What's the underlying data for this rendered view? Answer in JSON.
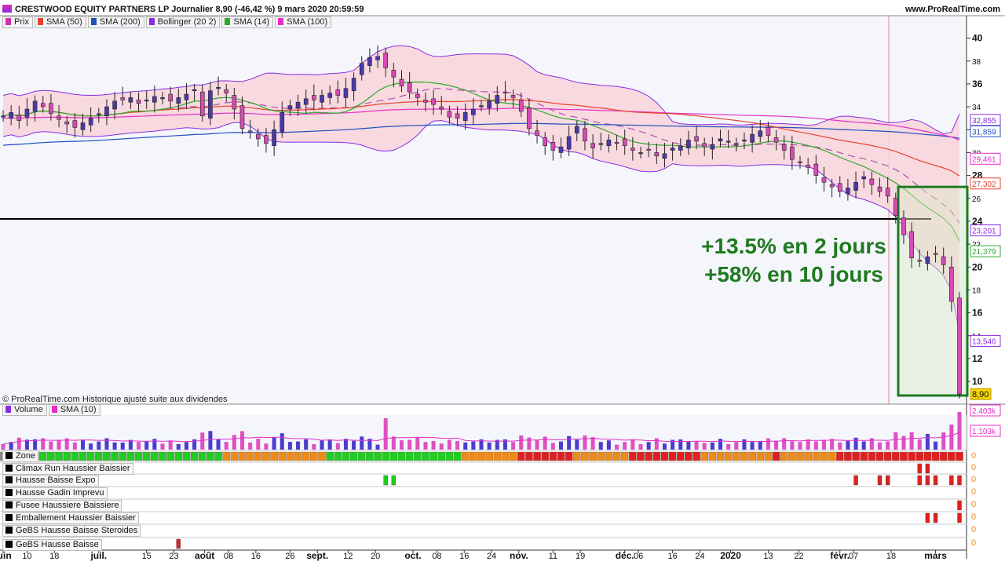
{
  "header": {
    "title": "CRESTWOOD EQUITY PARTNERS LP Journalier 8,90 (-46,42 %) 9 mars 2020 20:59:59",
    "site": "www.ProRealTime.com"
  },
  "legend": [
    {
      "label": "Prix",
      "color": "#d62fb0"
    },
    {
      "label": "SMA (50)",
      "color": "#e8422d"
    },
    {
      "label": "SMA (200)",
      "color": "#1f4fbf"
    },
    {
      "label": "Bollinger (20 2)",
      "color": "#8a2be2"
    },
    {
      "label": "SMA (14)",
      "color": "#2eaa2e"
    },
    {
      "label": "SMA (100)",
      "color": "#e62ec8"
    }
  ],
  "credit": "© ProRealTime.com  Historique ajusté suite aux dividendes",
  "annotation": {
    "line1": "+13.5% en 2 jours",
    "line2": "+58% en 10 jours"
  },
  "volume_legend": [
    {
      "label": "Volume",
      "color": "#8a2be2"
    },
    {
      "label": "SMA (10)",
      "color": "#e62ec8"
    }
  ],
  "volume_axis": {
    "max_label": "2.403k",
    "mid_label": "1.103k"
  },
  "indicators": [
    {
      "label": "Zone",
      "value": "0"
    },
    {
      "label": "Climax Run Haussier Baissier",
      "value": "0"
    },
    {
      "label": "Hausse Baisse Expo",
      "value": "0"
    },
    {
      "label": "Hausse Gadin Imprevu",
      "value": "0"
    },
    {
      "label": "Fusee Haussiere Baissiere",
      "value": "0"
    },
    {
      "label": "Emballement Haussier Baissier",
      "value": "0"
    },
    {
      "label": "GeBS Hausse Baisse Steroides",
      "value": "0"
    },
    {
      "label": "GeBS Hausse Baisse",
      "value": "0"
    }
  ],
  "chart_data": {
    "type": "candlestick",
    "title": "CRESTWOOD EQUITY PARTNERS LP Journalier",
    "ylim": [
      8.5,
      41
    ],
    "y_ticks": [
      10,
      12,
      14,
      16,
      18,
      20,
      22,
      24,
      26,
      28,
      30,
      32,
      34,
      36,
      38,
      40
    ],
    "x_ticks": [
      "juin",
      "10",
      "18",
      "juil.",
      "15",
      "23",
      "août",
      "08",
      "16",
      "26",
      "sept.",
      "12",
      "20",
      "oct.",
      "08",
      "16",
      "24",
      "nov.",
      "11",
      "19",
      "déc.",
      "06",
      "16",
      "24",
      "2020",
      "13",
      "22",
      "févr.",
      "07",
      "18",
      "mars"
    ],
    "x_start": "2019-06-03",
    "x_end": "2020-03-09",
    "close_series": [
      33.2,
      33.5,
      32.8,
      33.8,
      34.5,
      34.0,
      33.4,
      32.9,
      32.5,
      32.2,
      32.6,
      33.0,
      33.4,
      34.0,
      34.5,
      34.6,
      34.8,
      34.3,
      34.6,
      34.9,
      34.8,
      34.5,
      34.8,
      35.1,
      35.5,
      33.2,
      35.4,
      35.7,
      35.2,
      33.8,
      32.1,
      31.8,
      31.2,
      30.8,
      32.0,
      33.5,
      34.1,
      34.4,
      34.7,
      34.6,
      35.0,
      35.2,
      35.0,
      35.6,
      36.5,
      37.8,
      38.3,
      38.4,
      37.4,
      36.6,
      35.8,
      35.3,
      34.8,
      34.4,
      34.2,
      33.8,
      33.1,
      33.0,
      33.5,
      33.8,
      34.1,
      34.5,
      35.0,
      35.2,
      34.8,
      33.6,
      32.1,
      31.5,
      30.6,
      30.2,
      30.5,
      31.4,
      32.3,
      31.0,
      30.4,
      30.8,
      31.1,
      30.9,
      30.6,
      30.2,
      30.0,
      30.2,
      29.7,
      29.9,
      30.4,
      30.6,
      31.1,
      31.0,
      30.5,
      30.7,
      31.2,
      31.0,
      30.8,
      31.1,
      31.6,
      31.9,
      31.5,
      30.9,
      30.2,
      29.4,
      29.1,
      28.7,
      28.0,
      27.4,
      27.0,
      26.6,
      26.9,
      27.4,
      27.9,
      27.2,
      26.6,
      26.2,
      24.5,
      22.8,
      20.8,
      20.5,
      20.9,
      21.1,
      20.2,
      17.0,
      8.9
    ],
    "sma_levels": {
      "SMA (200)": 31.859,
      "SMA (100)": 29.461,
      "SMA (50)": 27.302,
      "SMA (14)": 21.379,
      "Bollinger upper": 32.855,
      "Bollinger lower": 13.546,
      "Bollinger mid": 23.201
    },
    "price_last": 8.9,
    "horizontal_level": 24.2,
    "highlight_box": {
      "y_top": 27.0,
      "y_bottom": 8.5,
      "from": "2020-02-20",
      "to": "2020-03-09"
    }
  }
}
